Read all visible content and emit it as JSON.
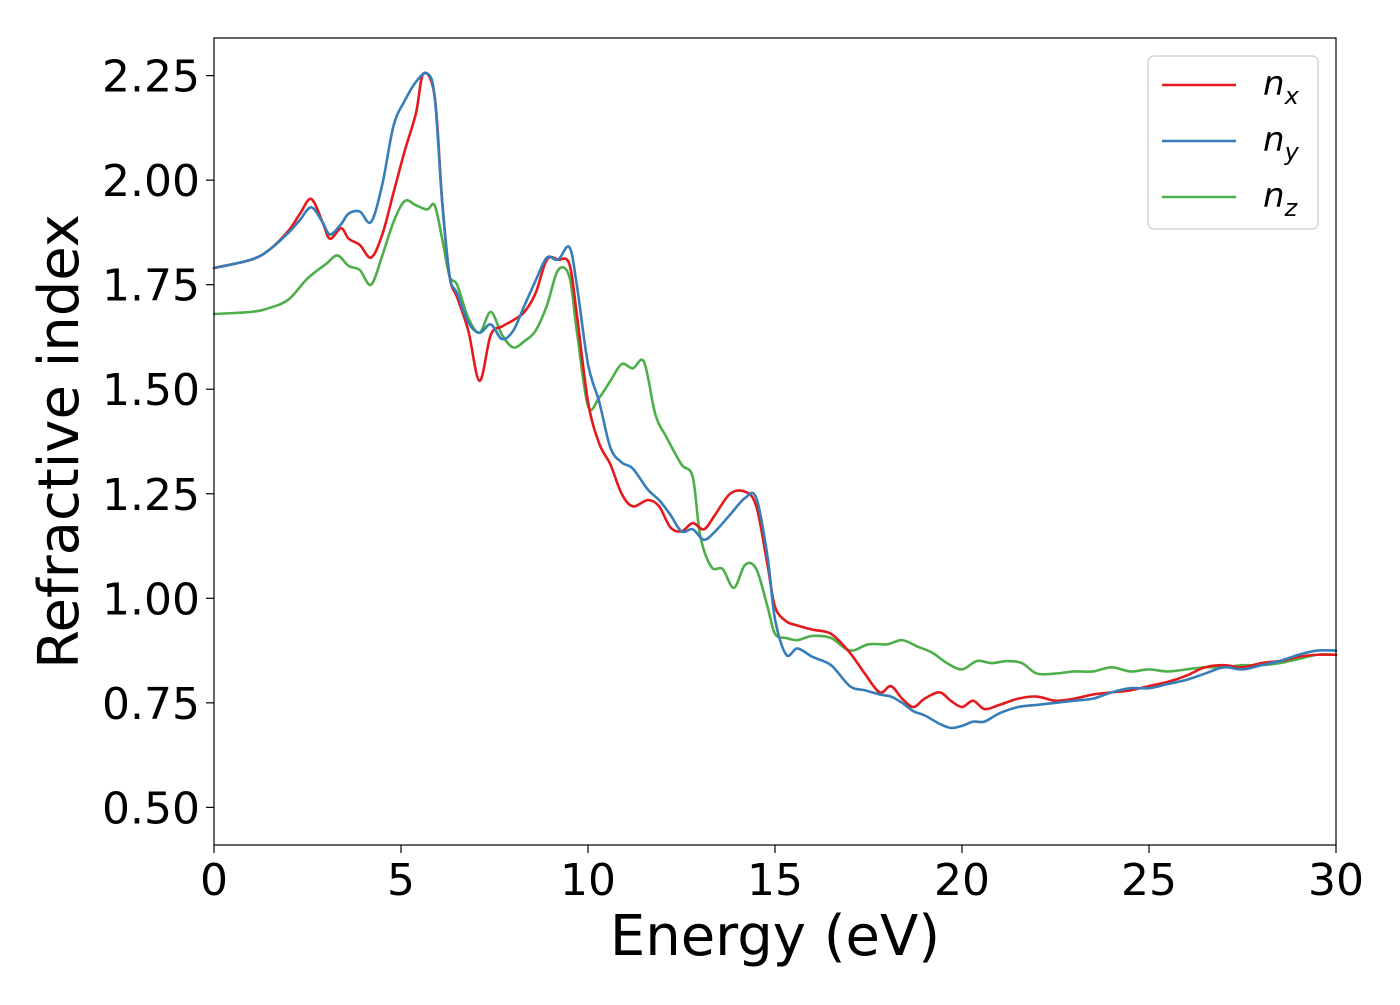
{
  "chart_data": {
    "type": "line",
    "title": "",
    "xlabel": "Energy (eV)",
    "ylabel": "Refractive index",
    "xlim": [
      0,
      30
    ],
    "ylim": [
      0.41,
      2.34
    ],
    "xticks": [
      0,
      5,
      10,
      15,
      20,
      25,
      30
    ],
    "xtick_labels": [
      "0",
      "5",
      "10",
      "15",
      "20",
      "25",
      "30"
    ],
    "yticks": [
      0.5,
      0.75,
      1.0,
      1.25,
      1.5,
      1.75,
      2.0,
      2.25
    ],
    "ytick_labels": [
      "0.50",
      "0.75",
      "1.00",
      "1.25",
      "1.50",
      "1.75",
      "2.00",
      "2.25"
    ],
    "grid": false,
    "legend_position": "top-right",
    "series": [
      {
        "name": "n_x",
        "legend_main": "n",
        "legend_sub": "x",
        "color": "#e41a1c",
        "x": [
          0,
          1,
          1.5,
          2,
          2.3,
          2.6,
          2.9,
          3.1,
          3.4,
          3.6,
          3.9,
          4.2,
          4.5,
          4.8,
          5.1,
          5.4,
          5.6,
          5.9,
          6.1,
          6.3,
          6.5,
          6.8,
          7.1,
          7.4,
          7.7,
          8.0,
          8.3,
          8.6,
          8.9,
          9.2,
          9.5,
          9.7,
          10.0,
          10.3,
          10.6,
          10.9,
          11.2,
          11.6,
          11.9,
          12.2,
          12.5,
          12.8,
          13.1,
          13.4,
          13.8,
          14.2,
          14.5,
          14.8,
          15.0,
          15.3,
          15.6,
          16.0,
          16.5,
          17.0,
          17.4,
          17.8,
          18.1,
          18.4,
          18.7,
          19.0,
          19.4,
          19.7,
          20.0,
          20.3,
          20.6,
          21.0,
          21.5,
          22.0,
          22.5,
          23.0,
          23.5,
          24.0,
          24.5,
          25.0,
          25.5,
          26.0,
          26.5,
          27.0,
          27.5,
          28.0,
          28.5,
          29.0,
          29.5,
          30.0
        ],
        "values": [
          1.79,
          1.81,
          1.835,
          1.88,
          1.92,
          1.955,
          1.9,
          1.86,
          1.885,
          1.86,
          1.845,
          1.815,
          1.87,
          1.97,
          2.07,
          2.16,
          2.255,
          2.2,
          1.95,
          1.77,
          1.72,
          1.64,
          1.52,
          1.63,
          1.65,
          1.665,
          1.685,
          1.73,
          1.81,
          1.81,
          1.8,
          1.68,
          1.47,
          1.37,
          1.32,
          1.25,
          1.22,
          1.235,
          1.22,
          1.17,
          1.16,
          1.18,
          1.165,
          1.2,
          1.25,
          1.255,
          1.22,
          1.08,
          0.98,
          0.945,
          0.935,
          0.925,
          0.915,
          0.87,
          0.82,
          0.775,
          0.79,
          0.76,
          0.74,
          0.76,
          0.775,
          0.755,
          0.74,
          0.755,
          0.735,
          0.745,
          0.76,
          0.765,
          0.755,
          0.76,
          0.77,
          0.775,
          0.78,
          0.79,
          0.8,
          0.815,
          0.835,
          0.84,
          0.835,
          0.845,
          0.85,
          0.86,
          0.865,
          0.865
        ]
      },
      {
        "name": "n_y",
        "legend_main": "n",
        "legend_sub": "y",
        "color": "#377eb8",
        "x": [
          0,
          1,
          1.5,
          2,
          2.3,
          2.6,
          2.9,
          3.1,
          3.4,
          3.6,
          3.9,
          4.2,
          4.5,
          4.8,
          5.1,
          5.4,
          5.7,
          5.9,
          6.1,
          6.3,
          6.5,
          6.8,
          7.1,
          7.4,
          7.7,
          8.0,
          8.3,
          8.6,
          8.9,
          9.2,
          9.5,
          9.7,
          10.0,
          10.3,
          10.6,
          10.9,
          11.2,
          11.6,
          11.9,
          12.2,
          12.5,
          12.8,
          13.1,
          13.4,
          13.8,
          14.2,
          14.5,
          14.8,
          15.0,
          15.3,
          15.6,
          16.0,
          16.5,
          17.0,
          17.4,
          17.8,
          18.1,
          18.4,
          18.7,
          19.0,
          19.4,
          19.7,
          20.0,
          20.3,
          20.6,
          21.0,
          21.5,
          22.0,
          22.5,
          23.0,
          23.5,
          24.0,
          24.5,
          25.0,
          25.5,
          26.0,
          26.5,
          27.0,
          27.5,
          28.0,
          28.5,
          29.0,
          29.5,
          30.0
        ],
        "values": [
          1.79,
          1.81,
          1.835,
          1.875,
          1.905,
          1.935,
          1.9,
          1.87,
          1.895,
          1.92,
          1.925,
          1.9,
          1.99,
          2.13,
          2.19,
          2.235,
          2.255,
          2.2,
          1.95,
          1.77,
          1.73,
          1.66,
          1.635,
          1.655,
          1.62,
          1.64,
          1.7,
          1.76,
          1.815,
          1.81,
          1.84,
          1.75,
          1.56,
          1.47,
          1.36,
          1.325,
          1.31,
          1.26,
          1.235,
          1.2,
          1.16,
          1.165,
          1.14,
          1.16,
          1.2,
          1.24,
          1.24,
          1.1,
          0.95,
          0.865,
          0.88,
          0.86,
          0.84,
          0.79,
          0.78,
          0.77,
          0.765,
          0.75,
          0.73,
          0.72,
          0.7,
          0.69,
          0.695,
          0.705,
          0.705,
          0.725,
          0.74,
          0.745,
          0.75,
          0.755,
          0.76,
          0.775,
          0.785,
          0.785,
          0.795,
          0.805,
          0.82,
          0.835,
          0.83,
          0.84,
          0.85,
          0.865,
          0.875,
          0.875
        ]
      },
      {
        "name": "n_z",
        "legend_main": "n",
        "legend_sub": "z",
        "color": "#4daf4a",
        "x": [
          0,
          1,
          1.5,
          2,
          2.5,
          3.0,
          3.3,
          3.6,
          3.9,
          4.2,
          4.5,
          4.8,
          5.1,
          5.4,
          5.7,
          5.9,
          6.1,
          6.3,
          6.5,
          6.8,
          7.1,
          7.4,
          7.7,
          8.0,
          8.3,
          8.6,
          8.9,
          9.2,
          9.5,
          9.7,
          10.0,
          10.3,
          10.6,
          10.9,
          11.2,
          11.5,
          11.8,
          12.1,
          12.5,
          12.8,
          13.0,
          13.3,
          13.6,
          13.9,
          14.2,
          14.5,
          14.8,
          15.0,
          15.3,
          15.6,
          16.0,
          16.5,
          17.0,
          17.5,
          18.0,
          18.4,
          18.8,
          19.2,
          19.6,
          20.0,
          20.4,
          20.8,
          21.2,
          21.6,
          22.0,
          22.5,
          23.0,
          23.5,
          24.0,
          24.5,
          25.0,
          25.5,
          26.0,
          26.5,
          27.0,
          27.5,
          28.0,
          28.5,
          29.0,
          29.5,
          30.0
        ],
        "values": [
          1.68,
          1.685,
          1.695,
          1.715,
          1.765,
          1.8,
          1.82,
          1.795,
          1.785,
          1.75,
          1.82,
          1.9,
          1.95,
          1.94,
          1.93,
          1.94,
          1.86,
          1.77,
          1.75,
          1.67,
          1.635,
          1.685,
          1.63,
          1.6,
          1.615,
          1.64,
          1.7,
          1.785,
          1.77,
          1.64,
          1.46,
          1.48,
          1.52,
          1.56,
          1.55,
          1.565,
          1.44,
          1.385,
          1.32,
          1.29,
          1.15,
          1.075,
          1.07,
          1.025,
          1.08,
          1.07,
          0.98,
          0.915,
          0.905,
          0.9,
          0.91,
          0.905,
          0.875,
          0.89,
          0.89,
          0.9,
          0.885,
          0.87,
          0.845,
          0.83,
          0.85,
          0.845,
          0.85,
          0.845,
          0.82,
          0.82,
          0.825,
          0.825,
          0.835,
          0.825,
          0.83,
          0.825,
          0.83,
          0.835,
          0.835,
          0.84,
          0.84,
          0.845,
          0.855,
          0.865,
          0.865
        ]
      }
    ]
  }
}
